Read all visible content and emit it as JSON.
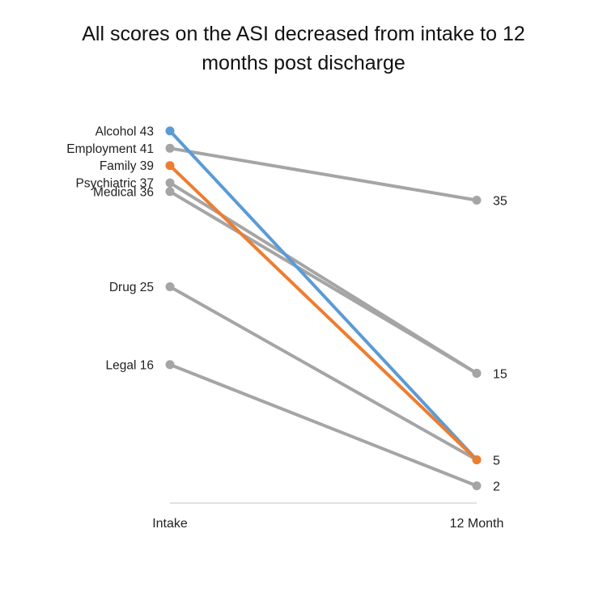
{
  "chart_data": {
    "type": "line",
    "title_lines": [
      "All scores on the ASI decreased from intake to 12",
      "months post discharge"
    ],
    "xlabel": "",
    "ylabel": "",
    "categories": [
      "Intake",
      "12 Month"
    ],
    "ylim": [
      0,
      45
    ],
    "grid": false,
    "legend": "none",
    "start_labels": [
      "Alcohol 43",
      "Employment 41",
      "Family 39",
      "Psychiatric 37",
      "Medical 36",
      "Drug 25",
      "Legal 16"
    ],
    "end_labels": [
      "35",
      "15",
      "5",
      "2"
    ],
    "series": [
      {
        "name": "Alcohol",
        "values": [
          43,
          5
        ],
        "color": "#5b9bd5"
      },
      {
        "name": "Employment",
        "values": [
          41,
          35
        ],
        "color": "#a5a5a5"
      },
      {
        "name": "Family",
        "values": [
          39,
          5
        ],
        "color": "#ed7d31"
      },
      {
        "name": "Psychiatric",
        "values": [
          37,
          15
        ],
        "color": "#a5a5a5"
      },
      {
        "name": "Medical",
        "values": [
          36,
          15
        ],
        "color": "#a5a5a5"
      },
      {
        "name": "Drug",
        "values": [
          25,
          5
        ],
        "color": "#a5a5a5"
      },
      {
        "name": "Legal",
        "values": [
          16,
          2
        ],
        "color": "#a5a5a5"
      }
    ]
  }
}
